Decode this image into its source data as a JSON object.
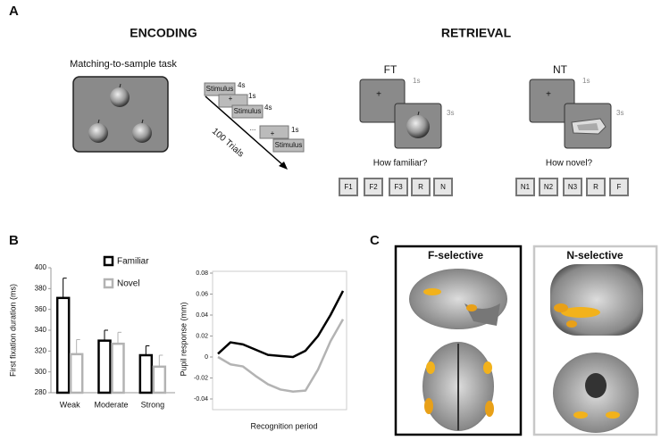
{
  "panel_labels": [
    "A",
    "B",
    "C"
  ],
  "encoding": {
    "title": "ENCODING",
    "task": "Matching-to-sample task",
    "timeline": {
      "box1": "Stimulus",
      "t1": "4s",
      "fix1": "+",
      "t2": "1s",
      "box2": "Stimulus",
      "t3": "4s",
      "dots": "...",
      "fix2": "+",
      "t4": "1s",
      "box3": "Stimulus",
      "trials": "100 Trials"
    }
  },
  "retrieval": {
    "title": "RETRIEVAL",
    "ft": {
      "label": "FT",
      "fix": "+",
      "t1": "1s",
      "t2": "3s",
      "question": "How familiar?",
      "buttons": [
        "F1",
        "F2",
        "F3",
        "R",
        "N"
      ]
    },
    "nt": {
      "label": "NT",
      "fix": "+",
      "t1": "1s",
      "t2": "3s",
      "question": "How novel?",
      "buttons": [
        "N1",
        "N2",
        "N3",
        "R",
        "F"
      ]
    }
  },
  "chart_data": [
    {
      "type": "bar",
      "ylabel": "First fixation duration (ms)",
      "categories": [
        "Weak",
        "Moderate",
        "Strong"
      ],
      "series": [
        {
          "name": "Familiar",
          "color": "#000000",
          "values": [
            371,
            330,
            316
          ],
          "errors": [
            19,
            10,
            9
          ]
        },
        {
          "name": "Novel",
          "color": "#b3b3b3",
          "values": [
            317,
            327,
            305
          ],
          "errors": [
            14,
            11,
            11
          ]
        }
      ],
      "ylim": [
        280,
        400
      ],
      "yticks": [
        280,
        300,
        320,
        340,
        360,
        380,
        400
      ]
    },
    {
      "type": "line",
      "ylabel": "Pupil response (mm)",
      "xlabel": "Recognition period",
      "series": [
        {
          "color": "#000000",
          "values": [
            0.003,
            0.014,
            0.012,
            0.007,
            0.002,
            0.001,
            0.0,
            0.006,
            0.02,
            0.04,
            0.063
          ]
        },
        {
          "color": "#b3b3b3",
          "values": [
            0.0,
            -0.007,
            -0.009,
            -0.018,
            -0.026,
            -0.031,
            -0.033,
            -0.032,
            -0.012,
            0.015,
            0.036
          ]
        }
      ],
      "ylim": [
        -0.04,
        0.08
      ],
      "yticks": [
        -0.04,
        -0.02,
        0,
        0.02,
        0.04,
        0.06,
        0.08
      ]
    }
  ],
  "panel_c": {
    "left": "F-selective",
    "right": "N-selective"
  }
}
